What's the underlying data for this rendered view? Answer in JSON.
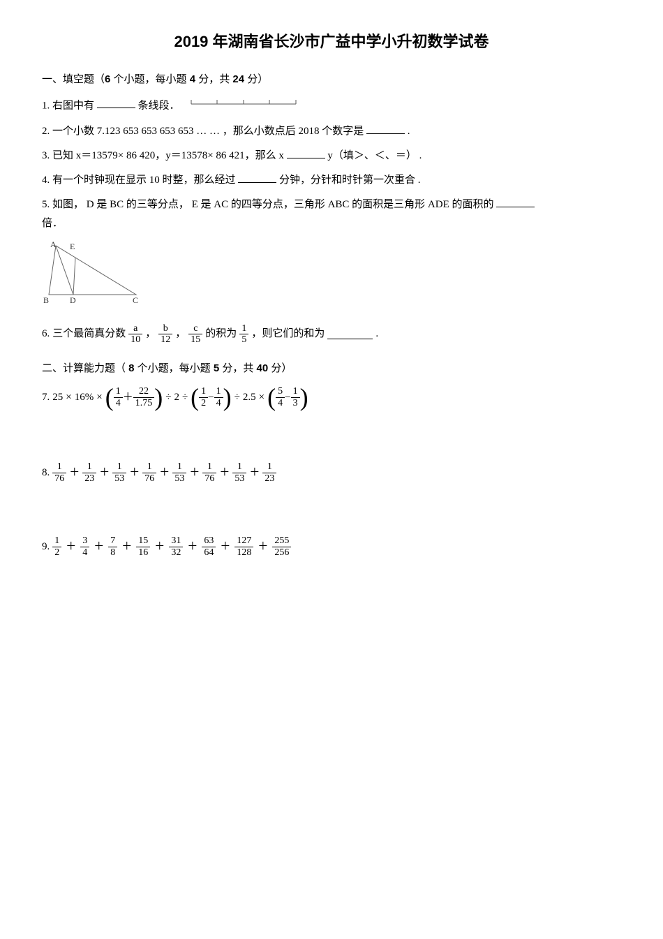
{
  "title": "2019 年湖南省长沙市广益中学小升初数学试卷",
  "section1": {
    "header_prefix": "一、填空题（",
    "header_count": "6",
    "header_mid1": " 个小题，每小题 ",
    "header_score": "4",
    "header_mid2": " 分，共 ",
    "header_total": "24",
    "header_suffix": " 分）"
  },
  "q1": {
    "num": "1.",
    "text_a": " 右图中有 ",
    "text_b": "条线段．",
    "ruler": {
      "width": 150,
      "ticks": 5,
      "stroke": "#555555"
    }
  },
  "q2": {
    "num": "2.",
    "text_a": " 一个小数  7.123 653 653 653 653 … … ，那么小数点后   2018 个数字是 ",
    "text_b": "."
  },
  "q3": {
    "num": "3.",
    "text_a": " 已知 x＝13579× 86 420，y＝13578× 86 421，那么 x ",
    "text_b": " y（填＞、＜、＝）  ."
  },
  "q4": {
    "num": "4.",
    "text_a": " 有一个时钟现在显示   10 时整，那么经过",
    "text_b": "分钟，分针和时针第一次重合   ."
  },
  "q5": {
    "num": "5.",
    "text_a": " 如图， D 是 BC 的三等分点， E 是 AC 的四等分点，三角形   ABC 的面积是三角形   ADE 的面积的 ",
    "text_b": "倍．",
    "figure": {
      "labels": {
        "A": "A",
        "B": "B",
        "C": "C",
        "D": "D",
        "E": "E"
      },
      "stroke": "#666666"
    }
  },
  "q6": {
    "num": "6.",
    "text_a": " 三个最简真分数 ",
    "a_num": "a",
    "a_den": "10",
    "comma1": "，",
    "b_num": "b",
    "b_den": "12",
    "comma2": "，",
    "c_num": "c",
    "c_den": "15",
    "text_b": " 的积为 ",
    "p_num": "1",
    "p_den": "5",
    "text_c": "，则它们的和为",
    "text_d": "."
  },
  "section2": {
    "header_prefix": "二、计算能力题（ ",
    "header_count": "8",
    "header_mid1": " 个小题，每小题 ",
    "header_score": "5",
    "header_mid2": " 分，共 ",
    "header_total": "40",
    "header_suffix": " 分）"
  },
  "q7": {
    "num": "7.",
    "t1": "25",
    "op1": "×",
    "t2": "16%",
    "op2": "×",
    "g1_a_num": "1",
    "g1_a_den": "4",
    "g1_plus": "＋",
    "g1_b": "22",
    "g1_c": "1.75",
    "op3": "÷",
    "t3": "2",
    "op4": "÷",
    "g2_a_num": "1",
    "g2_a_den": "2",
    "g2_minus": "−",
    "g2_b_num": "1",
    "g2_b_den": "4",
    "op5": "÷",
    "t4": "2.5",
    "op6": "×",
    "g3_a_num": "5",
    "g3_a_den": "4",
    "g3_minus": "−",
    "g3_b_num": "1",
    "g3_b_den": "3"
  },
  "q8": {
    "num": "8.",
    "f1_num": "1",
    "f1_den": "76",
    "plus": "＋",
    "f2_num": "1",
    "f2_den": "23",
    "f3_num": "1",
    "f3_den": "53",
    "f4_num": "1",
    "f4_den": "76",
    "f5_num": "1",
    "f5_den": "53",
    "f6_num": "1",
    "f6_den": "76",
    "f7_num": "1",
    "f7_den": "53",
    "f8_num": "1",
    "f8_den": "23"
  },
  "q9": {
    "num": "9.",
    "plus": "＋",
    "terms": [
      {
        "n": "1",
        "d": "2"
      },
      {
        "n": "3",
        "d": "4"
      },
      {
        "n": "7",
        "d": "8"
      },
      {
        "n": "15",
        "d": "16"
      },
      {
        "n": "31",
        "d": "32"
      },
      {
        "n": "63",
        "d": "64"
      },
      {
        "n": "127",
        "d": "128"
      },
      {
        "n": "255",
        "d": "256"
      }
    ]
  }
}
